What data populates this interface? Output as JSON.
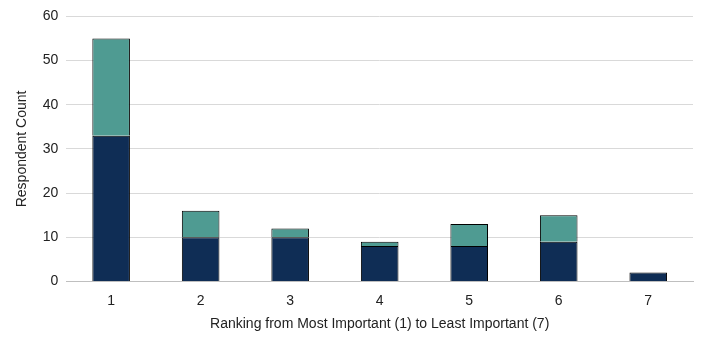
{
  "chart_data": {
    "type": "bar",
    "stacked": true,
    "grid": true,
    "x_label": "Ranking from Most Important (1) to Least Important (7)",
    "y_label": "Respondent Count",
    "categories": [
      "1",
      "2",
      "3",
      "4",
      "5",
      "6",
      "7"
    ],
    "series": [
      {
        "color": "#0f2d55",
        "values": [
          33,
          10,
          10,
          8,
          8,
          9,
          2
        ]
      },
      {
        "color": "#4f9b92",
        "values": [
          22,
          6,
          2,
          1,
          5,
          6,
          0
        ]
      }
    ],
    "ylim": [
      0,
      60
    ],
    "yticks": [
      0,
      10,
      20,
      30,
      40,
      50,
      60
    ]
  }
}
